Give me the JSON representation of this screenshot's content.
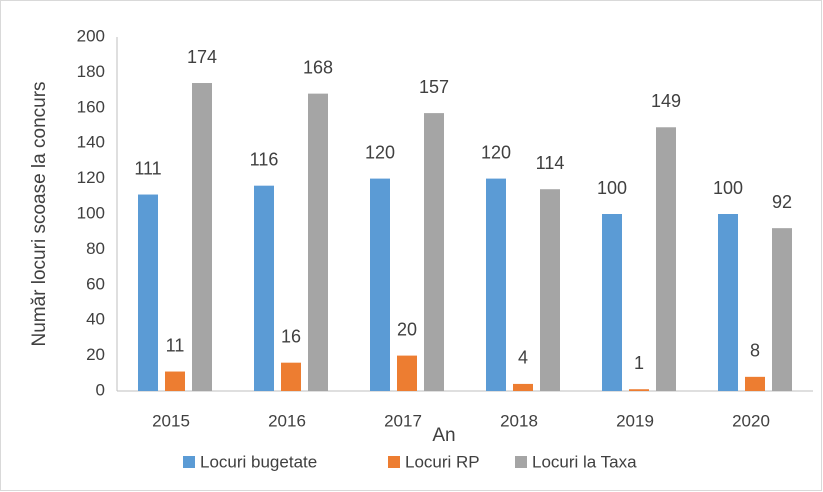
{
  "chart_data": {
    "type": "bar",
    "categories": [
      "2015",
      "2016",
      "2017",
      "2018",
      "2019",
      "2020"
    ],
    "series": [
      {
        "name": "Locuri bugetate",
        "color": "#5b9bd5",
        "values": [
          111,
          116,
          120,
          120,
          100,
          100
        ]
      },
      {
        "name": "Locuri RP",
        "color": "#ed7d31",
        "values": [
          11,
          16,
          20,
          4,
          1,
          8
        ]
      },
      {
        "name": "Locuri la Taxa",
        "color": "#a5a5a5",
        "values": [
          174,
          168,
          157,
          114,
          149,
          92
        ]
      }
    ],
    "x_label": "An",
    "y_label": "Număr locuri scoase la concurs",
    "ylim": [
      0,
      200
    ],
    "yticks": [
      0,
      20,
      40,
      60,
      80,
      100,
      120,
      140,
      160,
      180,
      200
    ],
    "grid": false,
    "legend": "bottom"
  }
}
